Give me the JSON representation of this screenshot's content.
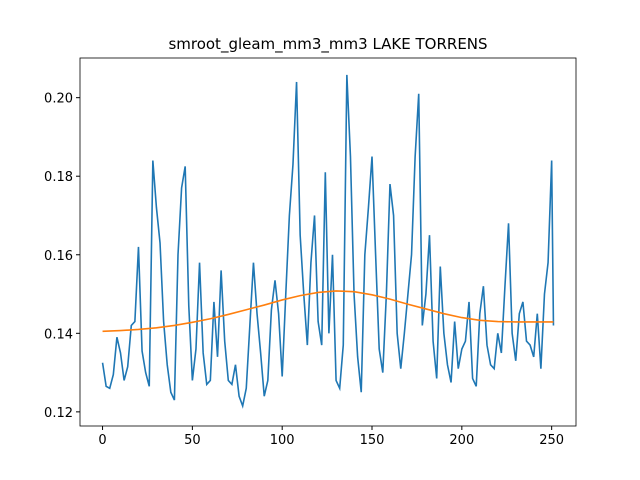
{
  "chart_data": {
    "type": "line",
    "title": "smroot_gleam_mm3_mm3 LAKE TORRENS",
    "xlim": [
      -12.55,
      263.55
    ],
    "xticks": [
      0,
      50,
      100,
      150,
      200,
      250
    ],
    "ylim": [
      0.1164,
      0.2101
    ],
    "yticks": [
      0.12,
      0.14,
      0.16,
      0.18,
      {
        "value": 0.2,
        "label": "0.20"
      }
    ],
    "series": [
      {
        "color": "#1f77b4",
        "x": [
          0,
          2,
          4,
          6,
          8,
          10,
          12,
          14,
          16,
          18,
          20,
          22,
          24,
          26,
          28,
          30,
          32,
          34,
          36,
          38,
          40,
          42,
          44,
          46,
          48,
          50,
          52,
          54,
          56,
          58,
          60,
          62,
          64,
          66,
          68,
          70,
          72,
          74,
          76,
          78,
          80,
          82,
          84,
          86,
          88,
          90,
          92,
          94,
          96,
          98,
          100,
          102,
          104,
          106,
          108,
          110,
          112,
          114,
          116,
          118,
          120,
          122,
          124,
          126,
          128,
          130,
          132,
          134,
          136,
          138,
          140,
          142,
          144,
          146,
          148,
          150,
          152,
          154,
          156,
          158,
          160,
          162,
          164,
          166,
          168,
          170,
          172,
          174,
          176,
          178,
          180,
          182,
          184,
          186,
          188,
          190,
          192,
          194,
          196,
          198,
          200,
          202,
          204,
          206,
          208,
          210,
          212,
          214,
          216,
          218,
          220,
          222,
          224,
          226,
          228,
          230,
          232,
          234,
          236,
          238,
          240,
          242,
          244,
          246,
          248,
          250,
          251
        ],
        "values": [
          0.1325,
          0.1265,
          0.126,
          0.1295,
          0.139,
          0.135,
          0.128,
          0.1315,
          0.142,
          0.143,
          0.162,
          0.1355,
          0.13,
          0.1265,
          0.184,
          0.172,
          0.163,
          0.143,
          0.132,
          0.125,
          0.123,
          0.16,
          0.177,
          0.1825,
          0.147,
          0.128,
          0.136,
          0.158,
          0.135,
          0.127,
          0.128,
          0.148,
          0.134,
          0.156,
          0.138,
          0.128,
          0.127,
          0.132,
          0.124,
          0.1215,
          0.126,
          0.142,
          0.158,
          0.145,
          0.135,
          0.124,
          0.128,
          0.146,
          0.1535,
          0.145,
          0.129,
          0.15,
          0.17,
          0.183,
          0.204,
          0.165,
          0.15,
          0.137,
          0.158,
          0.17,
          0.143,
          0.137,
          0.181,
          0.14,
          0.16,
          0.128,
          0.126,
          0.137,
          0.2058,
          0.185,
          0.15,
          0.134,
          0.125,
          0.16,
          0.172,
          0.185,
          0.16,
          0.136,
          0.13,
          0.15,
          0.178,
          0.17,
          0.14,
          0.131,
          0.14,
          0.15,
          0.16,
          0.185,
          0.201,
          0.142,
          0.15,
          0.165,
          0.138,
          0.1285,
          0.157,
          0.14,
          0.132,
          0.1275,
          0.143,
          0.131,
          0.136,
          0.138,
          0.148,
          0.1285,
          0.1265,
          0.145,
          0.152,
          0.137,
          0.132,
          0.131,
          0.14,
          0.135,
          0.152,
          0.168,
          0.14,
          0.133,
          0.145,
          0.148,
          0.138,
          0.137,
          0.134,
          0.145,
          0.131,
          0.15,
          0.158,
          0.184,
          0.142
        ]
      },
      {
        "color": "#ff7f0e",
        "x": [
          0,
          10,
          20,
          30,
          40,
          50,
          60,
          70,
          80,
          90,
          100,
          110,
          120,
          130,
          140,
          150,
          160,
          170,
          180,
          190,
          200,
          210,
          220,
          230,
          240,
          251
        ],
        "values": [
          0.1405,
          0.1407,
          0.141,
          0.1414,
          0.142,
          0.1428,
          0.1437,
          0.1448,
          0.146,
          0.1472,
          0.1485,
          0.1496,
          0.1504,
          0.1508,
          0.1506,
          0.1498,
          0.1487,
          0.1474,
          0.1462,
          0.145,
          0.144,
          0.1433,
          0.143,
          0.1429,
          0.1429,
          0.1429
        ]
      }
    ]
  }
}
